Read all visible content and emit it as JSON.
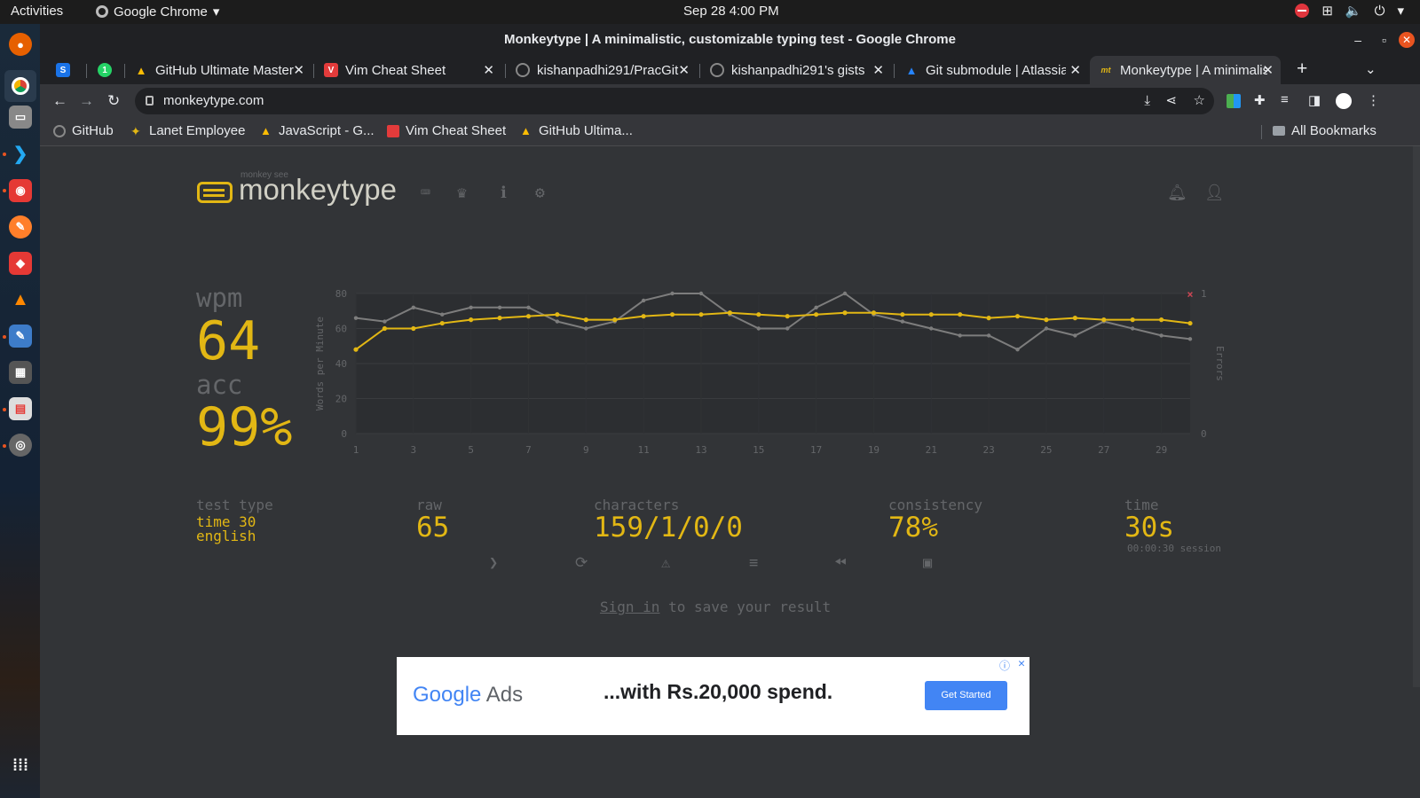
{
  "os": {
    "activities": "Activities",
    "app_name": "Google Chrome",
    "clock": "Sep 28  4:00 PM"
  },
  "window": {
    "title": "Monkeytype | A minimalistic, customizable typing test - Google Chrome"
  },
  "tabs": [
    {
      "label": "",
      "fav": "S",
      "color": "#1a73e8"
    },
    {
      "label": "",
      "fav": "1",
      "color": "#25d366"
    },
    {
      "label": "GitHub Ultimate Master",
      "fav": "▲",
      "color": "#fbbc04"
    },
    {
      "label": "Vim Cheat Sheet",
      "fav": "V",
      "color": "#e33b3b"
    },
    {
      "label": "kishanpadhi291/PracGit",
      "fav": "●",
      "color": "#333"
    },
    {
      "label": "kishanpadhi291's gists",
      "fav": "●",
      "color": "#333"
    },
    {
      "label": "Git submodule | Atlassian",
      "fav": "▲",
      "color": "#2684ff"
    },
    {
      "label": "Monkeytype | A minimalistic",
      "fav": "mt",
      "color": "#323437"
    }
  ],
  "address": {
    "url": "monkeytype.com"
  },
  "bookmarks": [
    {
      "label": "GitHub"
    },
    {
      "label": "Lanet Employee"
    },
    {
      "label": "JavaScript - G..."
    },
    {
      "label": "Vim Cheat Sheet"
    },
    {
      "label": "GitHub Ultima..."
    }
  ],
  "all_bookmarks": "All Bookmarks",
  "site": {
    "logo_sub": "monkey see",
    "logo_name": "monkeytype"
  },
  "stats": {
    "wpm_label": "wpm",
    "wpm": "64",
    "acc_label": "acc",
    "acc": "99%",
    "test_type_label": "test type",
    "test_type_1": "time 30",
    "test_type_2": "english",
    "raw_label": "raw",
    "raw": "65",
    "chars_label": "characters",
    "chars": "159/1/0/0",
    "consistency_label": "consistency",
    "consistency": "78%",
    "time_label": "time",
    "time": "30s",
    "session": "00:00:30 session"
  },
  "signin": {
    "link": "Sign in",
    "rest": " to save your result"
  },
  "ad": {
    "brand_google": "Google",
    "brand_ads": " Ads",
    "message": "...with Rs.20,000 spend.",
    "cta": "Get Started"
  },
  "colors": {
    "accent": "#e2b714",
    "bg": "#323437",
    "sub": "#646669",
    "text": "#d1d0c5",
    "raw_line": "#7d7d7d"
  },
  "chart_data": {
    "type": "line",
    "ylabel": "Words per Minute",
    "y2label": "Errors",
    "ylim": [
      0,
      80
    ],
    "y2lim": [
      0,
      1
    ],
    "yticks": [
      0,
      20,
      40,
      60,
      80
    ],
    "y2ticks": [
      0,
      1
    ],
    "xticks": [
      1,
      3,
      5,
      7,
      9,
      11,
      13,
      15,
      17,
      19,
      21,
      23,
      25,
      27,
      29
    ],
    "x": [
      1,
      2,
      3,
      4,
      5,
      6,
      7,
      8,
      9,
      10,
      11,
      12,
      13,
      14,
      15,
      16,
      17,
      18,
      19,
      20,
      21,
      22,
      23,
      24,
      25,
      26,
      27,
      28,
      29,
      30
    ],
    "series": [
      {
        "name": "wpm",
        "color": "#e2b714",
        "values": [
          48,
          60,
          60,
          63,
          65,
          66,
          67,
          68,
          65,
          65,
          67,
          68,
          68,
          69,
          68,
          67,
          68,
          69,
          69,
          68,
          68,
          68,
          66,
          67,
          65,
          66,
          65,
          65,
          65,
          63
        ]
      },
      {
        "name": "raw",
        "color": "#7d7d7d",
        "values": [
          66,
          64,
          72,
          68,
          72,
          72,
          72,
          64,
          60,
          64,
          76,
          80,
          80,
          68,
          60,
          60,
          72,
          80,
          68,
          64,
          60,
          56,
          56,
          48,
          60,
          56,
          64,
          60,
          56,
          54
        ]
      }
    ],
    "errors": [
      {
        "x": 30,
        "value": 1
      }
    ]
  }
}
